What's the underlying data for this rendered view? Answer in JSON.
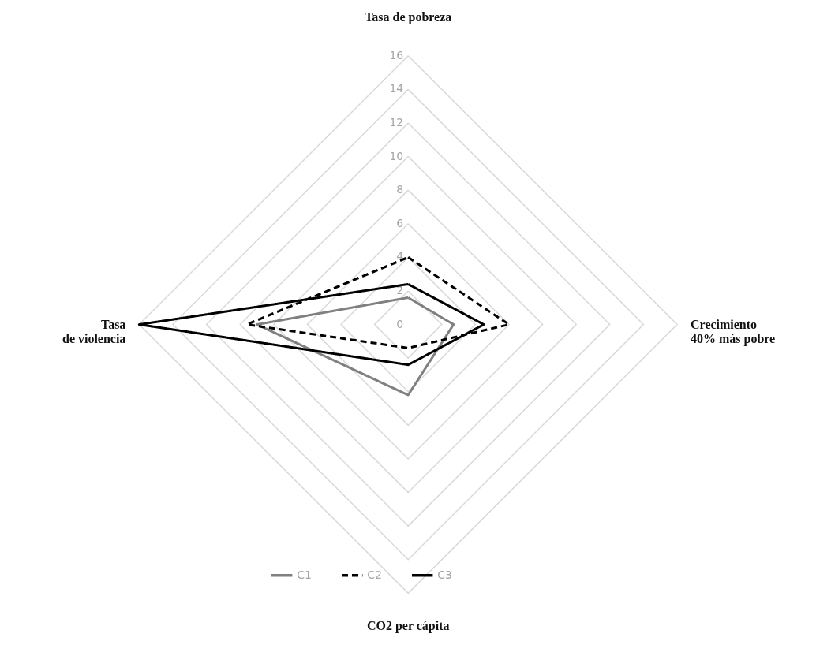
{
  "chart_data": {
    "type": "radar",
    "categories": [
      "Tasa de pobreza",
      "Crecimiento\n40% más pobre",
      "CO2 per cápita",
      "Tasa\nde violencia"
    ],
    "series": [
      {
        "name": "C1",
        "color": "#808080",
        "line_style": "solid",
        "values": [
          1.6,
          2.7,
          4.2,
          9
        ]
      },
      {
        "name": "C2",
        "color": "#000000",
        "line_style": "dashed",
        "values": [
          4,
          6,
          1.4,
          9.6
        ]
      },
      {
        "name": "C3",
        "color": "#000000",
        "line_style": "solid",
        "values": [
          2.4,
          4.5,
          2.4,
          16
        ]
      }
    ],
    "ylim": [
      0,
      16
    ],
    "yticks": [
      0,
      2,
      4,
      6,
      8,
      10,
      12,
      14,
      16
    ],
    "grid": true,
    "legend": "bottom"
  }
}
